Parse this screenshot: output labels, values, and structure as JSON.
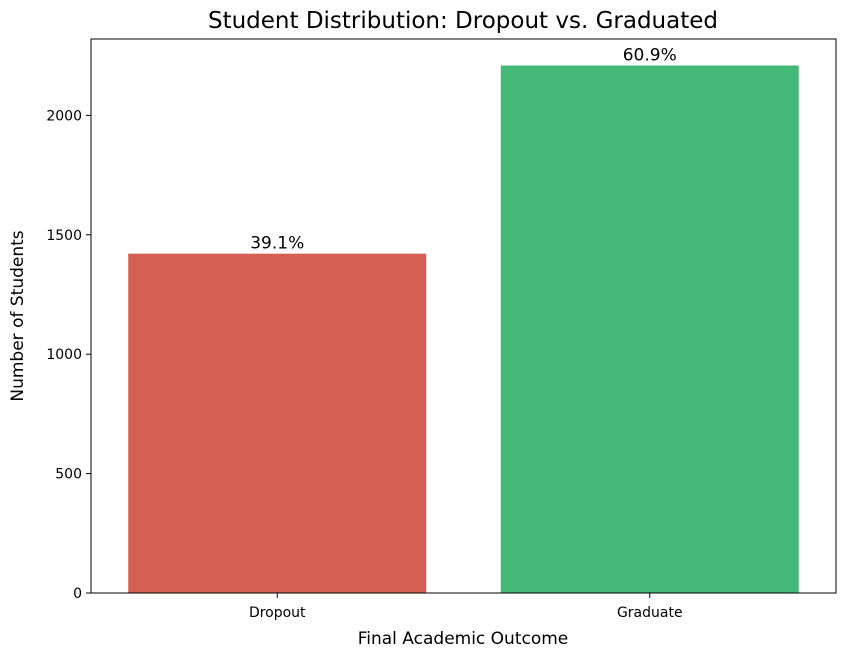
{
  "chart_data": {
    "type": "bar",
    "title": "Student Distribution: Dropout vs. Graduated",
    "xlabel": "Final Academic Outcome",
    "ylabel": "Number of Students",
    "categories": [
      "Dropout",
      "Graduate"
    ],
    "values": [
      1421,
      2209
    ],
    "data_labels": [
      "39.1%",
      "60.9%"
    ],
    "bar_colors": [
      "#d36052",
      "#44b977"
    ],
    "ylim": [
      0,
      2320
    ],
    "yticks": [
      0,
      500,
      1000,
      1500,
      2000
    ],
    "grid": false,
    "legend": "none"
  }
}
